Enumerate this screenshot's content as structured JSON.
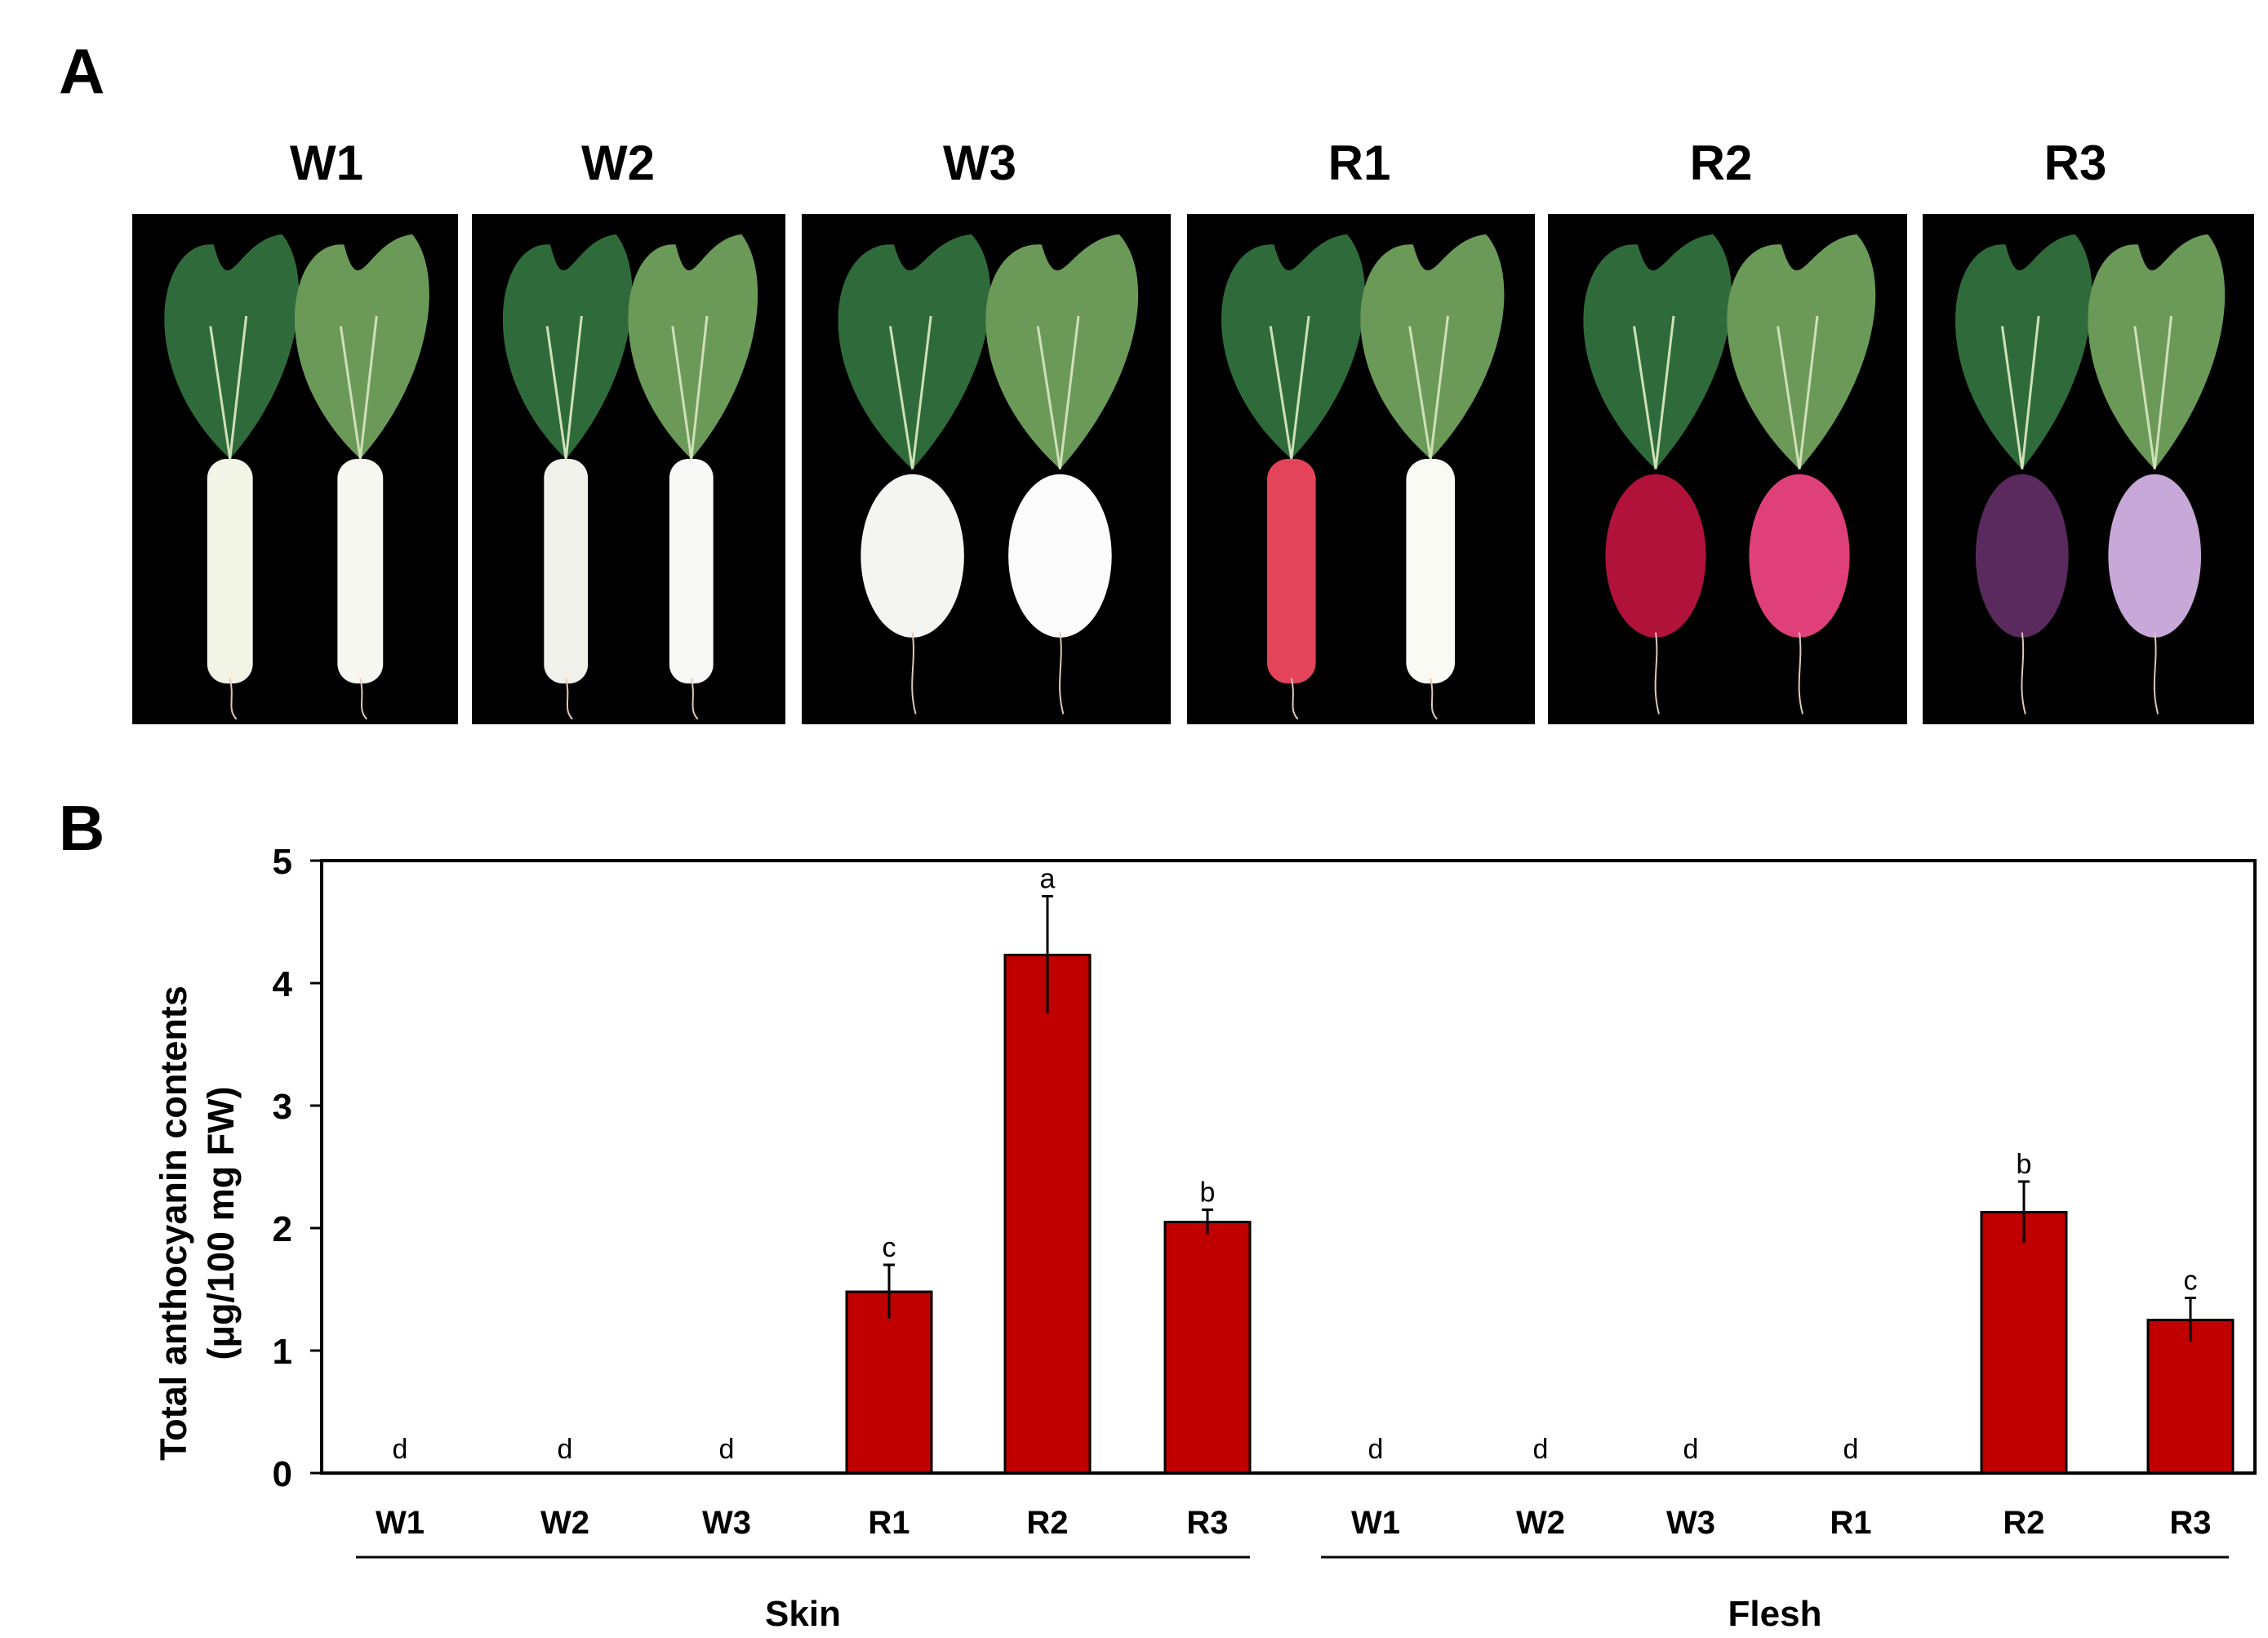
{
  "figure": {
    "panel_a_label": "A",
    "panel_b_label": "B"
  },
  "photos": [
    {
      "label": "W1",
      "root_color_1": "#f2f5e6",
      "root_color_2": "#f7f7f2",
      "shape": "long"
    },
    {
      "label": "W2",
      "root_color_1": "#f1f1ec",
      "root_color_2": "#f8f8f6",
      "shape": "long"
    },
    {
      "label": "W3",
      "root_color_1": "#f4f4f0",
      "root_color_2": "#fbfbfb",
      "shape": "round"
    },
    {
      "label": "R1",
      "root_color_1": "#e4445a",
      "root_color_2": "#fafaf4",
      "shape": "long"
    },
    {
      "label": "R2",
      "root_color_1": "#b0123a",
      "root_color_2": "#e0407a",
      "shape": "round"
    },
    {
      "label": "R3",
      "root_color_1": "#5a2a5e",
      "root_color_2": "#c8a8d8",
      "shape": "round"
    }
  ],
  "colors": {
    "bar": "#c00000",
    "leaf_dark": "#2f6b3a",
    "leaf_light": "#6b9a58"
  },
  "chart_data": {
    "type": "bar",
    "ylabel_line1": "Total anthocyanin contents",
    "ylabel_line2": "(μg/100 mg FW)",
    "ylim": [
      0,
      5
    ],
    "yticks": [
      0,
      1,
      2,
      3,
      4,
      5
    ],
    "groups": [
      "Skin",
      "Flesh"
    ],
    "categories": [
      "W1",
      "W2",
      "W3",
      "R1",
      "R2",
      "R3",
      "W1",
      "W2",
      "W3",
      "R1",
      "R2",
      "R3"
    ],
    "group_of": [
      "Skin",
      "Skin",
      "Skin",
      "Skin",
      "Skin",
      "Skin",
      "Flesh",
      "Flesh",
      "Flesh",
      "Flesh",
      "Flesh",
      "Flesh"
    ],
    "values": [
      0,
      0,
      0,
      1.48,
      4.23,
      2.05,
      0,
      0,
      0,
      0,
      2.13,
      1.25
    ],
    "errors": [
      0,
      0,
      0,
      0.22,
      0.48,
      0.1,
      0,
      0,
      0,
      0,
      0.25,
      0.18
    ],
    "letters": [
      "d",
      "d",
      "d",
      "c",
      "a",
      "b",
      "d",
      "d",
      "d",
      "d",
      "b",
      "c"
    ]
  }
}
